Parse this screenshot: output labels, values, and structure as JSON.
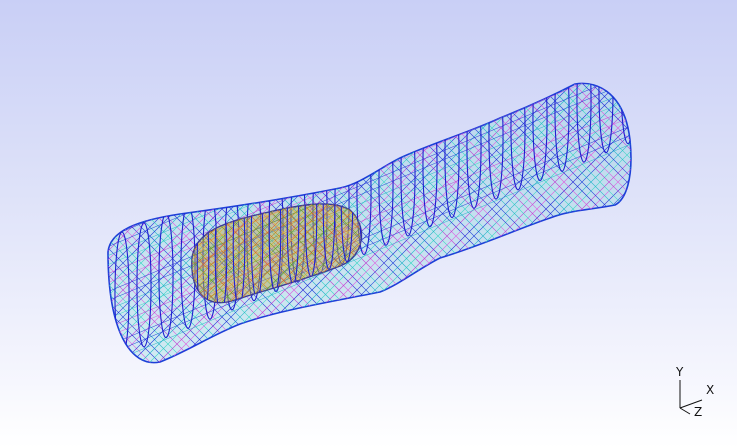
{
  "viewer": {
    "background_top": "#c9cff6",
    "background_bottom": "#ffffff"
  },
  "mesh": {
    "model": "vessel-with-inner-tube",
    "render_mode": "wireframe",
    "outer_colors": [
      "#1d3fd8",
      "#21b3c7",
      "#39d6c4",
      "#c13bd1",
      "#e05be0",
      "#2a2ad6"
    ],
    "inner_colors": [
      "#c58a1d",
      "#e2b232",
      "#6fa326",
      "#d6711f"
    ]
  },
  "triad": {
    "x_label": "X",
    "y_label": "Y",
    "z_label": "Z"
  }
}
